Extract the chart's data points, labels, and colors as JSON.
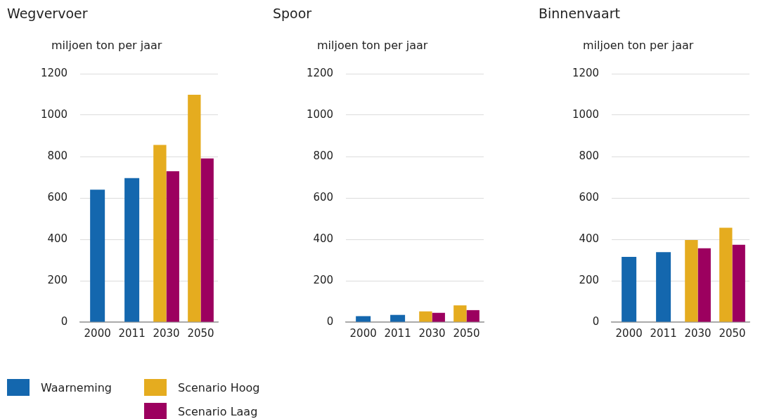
{
  "chart_data": [
    {
      "type": "bar",
      "title": "Wegvervoer",
      "ylabel": "miljoen ton per jaar",
      "categories": [
        "2000",
        "2011",
        "2030",
        "2050"
      ],
      "ylim": [
        0,
        1200
      ],
      "yticks": [
        0,
        200,
        400,
        600,
        800,
        1000,
        1200
      ],
      "grid": "y",
      "legend": "bottom left",
      "series": [
        {
          "name": "Waarneming",
          "color": "#1467ae",
          "values": [
            640,
            696,
            null,
            null
          ]
        },
        {
          "name": "Scenario Hoog",
          "color": "#e5ac1f",
          "values": [
            null,
            null,
            856,
            1098
          ]
        },
        {
          "name": "Scenario Laag",
          "color": "#9c005f",
          "values": [
            null,
            null,
            729,
            791
          ]
        }
      ]
    },
    {
      "type": "bar",
      "title": "Spoor",
      "ylabel": "miljoen ton per jaar",
      "categories": [
        "2000",
        "2011",
        "2030",
        "2050"
      ],
      "ylim": [
        0,
        1200
      ],
      "yticks": [
        0,
        200,
        400,
        600,
        800,
        1000,
        1200
      ],
      "grid": "y",
      "series": [
        {
          "color": "#1467ae",
          "values": [
            29,
            35,
            null,
            null
          ]
        },
        {
          "color": "#e5ac1f",
          "values": [
            null,
            null,
            52,
            81
          ]
        },
        {
          "color": "#9c005f",
          "values": [
            null,
            null,
            45,
            58
          ]
        }
      ]
    },
    {
      "type": "bar",
      "title": "Binnenvaart",
      "ylabel": "miljoen ton per jaar",
      "categories": [
        "2000",
        "2011",
        "2030",
        "2050"
      ],
      "ylim": [
        0,
        1200
      ],
      "yticks": [
        0,
        200,
        400,
        600,
        800,
        1000,
        1200
      ],
      "grid": "y",
      "series": [
        {
          "color": "#1467ae",
          "values": [
            315,
            338,
            null,
            null
          ]
        },
        {
          "color": "#e5ac1f",
          "values": [
            null,
            null,
            397,
            456
          ]
        },
        {
          "color": "#9c005f",
          "values": [
            null,
            null,
            357,
            374
          ]
        }
      ]
    }
  ]
}
